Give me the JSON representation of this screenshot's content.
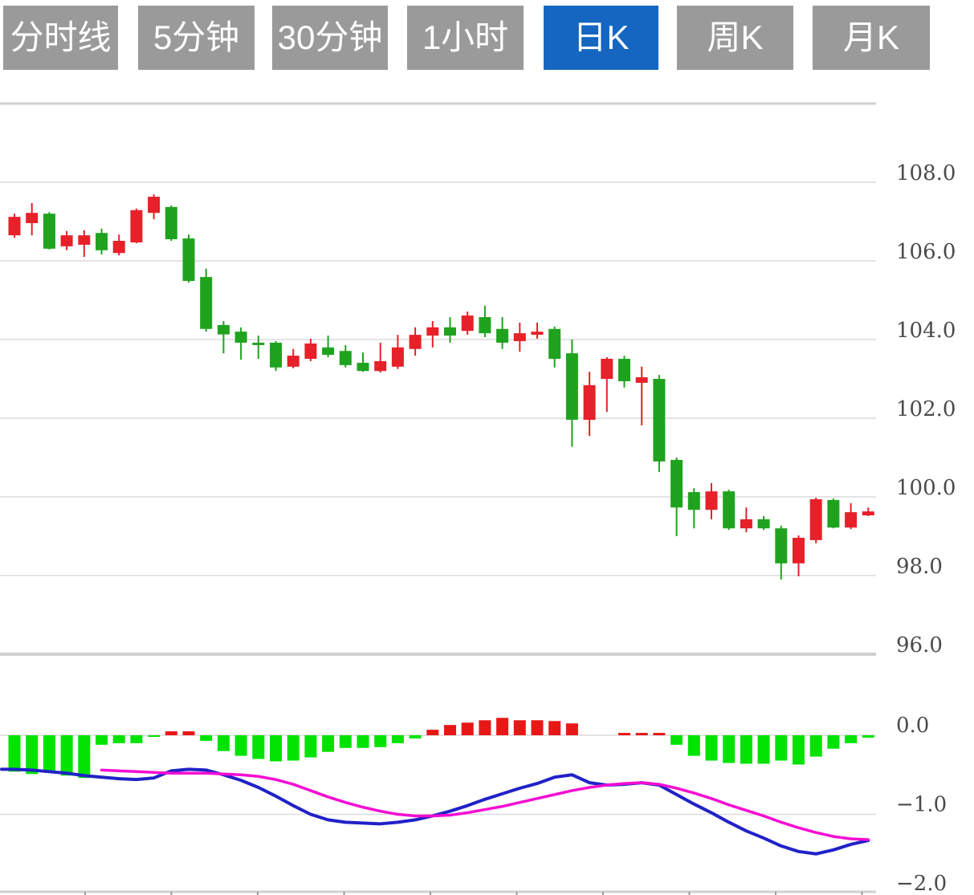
{
  "toolbar": {
    "tabs": [
      {
        "label": "分时线",
        "active": false
      },
      {
        "label": "5分钟",
        "active": false
      },
      {
        "label": "30分钟",
        "active": false
      },
      {
        "label": "1小时",
        "active": false
      },
      {
        "label": "日K",
        "active": true
      },
      {
        "label": "周K",
        "active": false
      },
      {
        "label": "月K",
        "active": false
      }
    ]
  },
  "colors": {
    "up_candle": "#e62129",
    "down_candle": "#1fa31f",
    "hist_positive": "#e81717",
    "hist_negative": "#00e300",
    "dif_line": "#2121c8",
    "dea_line": "#f50cd2",
    "gridline_thin": "#dcdcdc",
    "gridline_thick": "#d0d0d0",
    "axis_label": "#4a4a4a",
    "tab_background": "#9a9a9a",
    "tab_active_background": "#1466c0",
    "tab_text": "#ffffff"
  },
  "chart_data": {
    "type": "candlestick",
    "title": "",
    "period_selected": "日K",
    "legend": [],
    "grid": true,
    "price_axis": {
      "ylim": [
        96.0,
        110.0
      ],
      "grid_values": [
        110,
        108,
        106,
        104,
        102,
        100,
        98,
        96
      ],
      "ticks": [
        {
          "value": 108,
          "label": "108.0"
        },
        {
          "value": 106,
          "label": "106.0"
        },
        {
          "value": 104,
          "label": "104.0"
        },
        {
          "value": 102,
          "label": "102.0"
        },
        {
          "value": 100,
          "label": "100.0"
        },
        {
          "value": 98,
          "label": "98.0"
        },
        {
          "value": 96,
          "label": "96.0"
        }
      ]
    },
    "macd_axis": {
      "ylim": [
        -2.0,
        0.0
      ],
      "ticks": [
        {
          "value": 0,
          "label": "0.0"
        },
        {
          "value": -1,
          "label": "−1.0"
        },
        {
          "value": -2,
          "label": "−2.0"
        }
      ]
    },
    "candle_format": [
      "open",
      "high",
      "low",
      "close"
    ],
    "candles": [
      [
        106.65,
        107.2,
        106.59,
        107.12
      ],
      [
        106.96,
        107.47,
        106.65,
        107.22
      ],
      [
        107.2,
        107.24,
        106.29,
        106.31
      ],
      [
        106.37,
        106.76,
        106.27,
        106.65
      ],
      [
        106.41,
        106.78,
        106.1,
        106.65
      ],
      [
        106.71,
        106.82,
        106.16,
        106.27
      ],
      [
        106.2,
        106.67,
        106.14,
        106.51
      ],
      [
        106.47,
        107.33,
        106.45,
        107.29
      ],
      [
        107.22,
        107.69,
        107.06,
        107.63
      ],
      [
        107.37,
        107.41,
        106.51,
        106.55
      ],
      [
        106.57,
        106.67,
        105.45,
        105.49
      ],
      [
        105.59,
        105.8,
        104.2,
        104.27
      ],
      [
        104.37,
        104.47,
        103.65,
        104.13
      ],
      [
        104.2,
        104.31,
        103.49,
        103.92
      ],
      [
        103.92,
        104.1,
        103.51,
        103.86
      ],
      [
        103.92,
        103.96,
        103.2,
        103.29
      ],
      [
        103.31,
        103.76,
        103.27,
        103.59
      ],
      [
        103.51,
        104.02,
        103.45,
        103.9
      ],
      [
        103.8,
        104.1,
        103.55,
        103.61
      ],
      [
        103.71,
        103.86,
        103.29,
        103.35
      ],
      [
        103.41,
        103.67,
        103.18,
        103.2
      ],
      [
        103.2,
        103.92,
        103.16,
        103.45
      ],
      [
        103.31,
        104.12,
        103.25,
        103.8
      ],
      [
        103.76,
        104.31,
        103.59,
        104.12
      ],
      [
        104.1,
        104.47,
        103.8,
        104.31
      ],
      [
        104.31,
        104.57,
        103.92,
        104.1
      ],
      [
        104.22,
        104.71,
        104.12,
        104.61
      ],
      [
        104.57,
        104.86,
        104.06,
        104.16
      ],
      [
        104.27,
        104.57,
        103.76,
        103.92
      ],
      [
        103.96,
        104.43,
        103.69,
        104.16
      ],
      [
        104.12,
        104.43,
        104.02,
        104.2
      ],
      [
        104.27,
        104.33,
        103.29,
        103.51
      ],
      [
        103.65,
        104.0,
        101.27,
        101.96
      ],
      [
        101.96,
        103.18,
        101.55,
        102.84
      ],
      [
        103.0,
        103.55,
        102.16,
        103.51
      ],
      [
        103.51,
        103.59,
        102.78,
        102.94
      ],
      [
        102.9,
        103.31,
        101.82,
        103.04
      ],
      [
        103.0,
        103.1,
        100.63,
        100.9
      ],
      [
        100.94,
        101.0,
        99.0,
        99.73
      ],
      [
        100.12,
        100.22,
        99.2,
        99.67
      ],
      [
        99.67,
        100.35,
        99.43,
        100.14
      ],
      [
        100.14,
        100.18,
        99.16,
        99.2
      ],
      [
        99.2,
        99.73,
        99.1,
        99.43
      ],
      [
        99.43,
        99.51,
        99.16,
        99.2
      ],
      [
        99.2,
        99.27,
        97.9,
        98.31
      ],
      [
        98.31,
        99.02,
        97.98,
        98.96
      ],
      [
        98.9,
        99.98,
        98.82,
        99.94
      ],
      [
        99.92,
        99.96,
        99.2,
        99.22
      ],
      [
        99.22,
        99.84,
        99.18,
        99.61
      ],
      [
        99.53,
        99.73,
        99.51,
        99.63
      ]
    ],
    "macd": {
      "hist": [
        -0.46,
        -0.49,
        -0.47,
        -0.51,
        -0.54,
        -0.12,
        -0.1,
        -0.1,
        -0.02,
        0.05,
        0.05,
        -0.07,
        -0.2,
        -0.26,
        -0.3,
        -0.33,
        -0.32,
        -0.28,
        -0.21,
        -0.16,
        -0.16,
        -0.15,
        -0.1,
        -0.04,
        0.07,
        0.13,
        0.16,
        0.19,
        0.22,
        0.19,
        0.19,
        0.18,
        0.15,
        0,
        0,
        0.03,
        0.03,
        0.03,
        -0.12,
        -0.26,
        -0.32,
        -0.35,
        -0.36,
        -0.36,
        -0.32,
        -0.37,
        -0.27,
        -0.17,
        -0.1,
        -0.03
      ],
      "dif": [
        -0.43,
        -0.44,
        -0.46,
        -0.48,
        -0.51,
        -0.53,
        -0.55,
        -0.56,
        -0.54,
        -0.45,
        -0.43,
        -0.44,
        -0.5,
        -0.57,
        -0.66,
        -0.77,
        -0.89,
        -1.0,
        -1.07,
        -1.1,
        -1.11,
        -1.12,
        -1.1,
        -1.07,
        -1.02,
        -0.96,
        -0.89,
        -0.81,
        -0.74,
        -0.67,
        -0.61,
        -0.53,
        -0.5,
        -0.6,
        -0.63,
        -0.62,
        -0.6,
        -0.63,
        -0.75,
        -0.87,
        -0.98,
        -1.1,
        -1.21,
        -1.3,
        -1.4,
        -1.47,
        -1.5,
        -1.45,
        -1.38,
        -1.33
      ],
      "dea": [
        null,
        null,
        null,
        null,
        null,
        -0.44,
        -0.45,
        -0.46,
        -0.47,
        -0.48,
        -0.48,
        -0.48,
        -0.49,
        -0.5,
        -0.52,
        -0.56,
        -0.62,
        -0.7,
        -0.78,
        -0.85,
        -0.91,
        -0.96,
        -1.0,
        -1.02,
        -1.02,
        -1.01,
        -0.98,
        -0.94,
        -0.9,
        -0.85,
        -0.8,
        -0.75,
        -0.7,
        -0.66,
        -0.63,
        -0.61,
        -0.6,
        -0.62,
        -0.67,
        -0.73,
        -0.8,
        -0.88,
        -0.95,
        -1.02,
        -1.1,
        -1.17,
        -1.23,
        -1.28,
        -1.31,
        -1.32
      ]
    }
  }
}
